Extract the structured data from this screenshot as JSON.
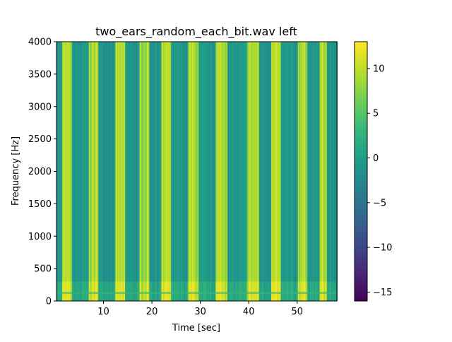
{
  "chart_data": {
    "type": "heatmap",
    "title": "two_ears_random_each_bit.wav left",
    "xlabel": "Time [sec]",
    "ylabel": "Frequency [Hz]",
    "xlim": [
      0.3,
      58.2
    ],
    "ylim": [
      0,
      4000
    ],
    "x_ticks": [
      10,
      20,
      30,
      40,
      50
    ],
    "y_ticks": [
      0,
      500,
      1000,
      1500,
      2000,
      2500,
      3000,
      3500,
      4000
    ],
    "colorbar": {
      "range": [
        -16,
        13
      ],
      "ticks": [
        10,
        5,
        0,
        -5,
        -10,
        -15
      ],
      "tick_labels": [
        "10",
        "5",
        "0",
        "−5",
        "−10",
        "−15"
      ],
      "colormap": "viridis"
    },
    "bright_bands_sec": [
      [
        1.5,
        3.5
      ],
      [
        7.0,
        9.0
      ],
      [
        12.5,
        14.5
      ],
      [
        17.5,
        19.5
      ],
      [
        22.0,
        24.0
      ],
      [
        27.5,
        29.5
      ],
      [
        33.0,
        35.5
      ],
      [
        39.5,
        42.0
      ],
      [
        44.5,
        46.5
      ],
      [
        50.0,
        52.0
      ],
      [
        54.5,
        56.0
      ]
    ],
    "band_level_db": 9,
    "background_level_db": -1
  }
}
